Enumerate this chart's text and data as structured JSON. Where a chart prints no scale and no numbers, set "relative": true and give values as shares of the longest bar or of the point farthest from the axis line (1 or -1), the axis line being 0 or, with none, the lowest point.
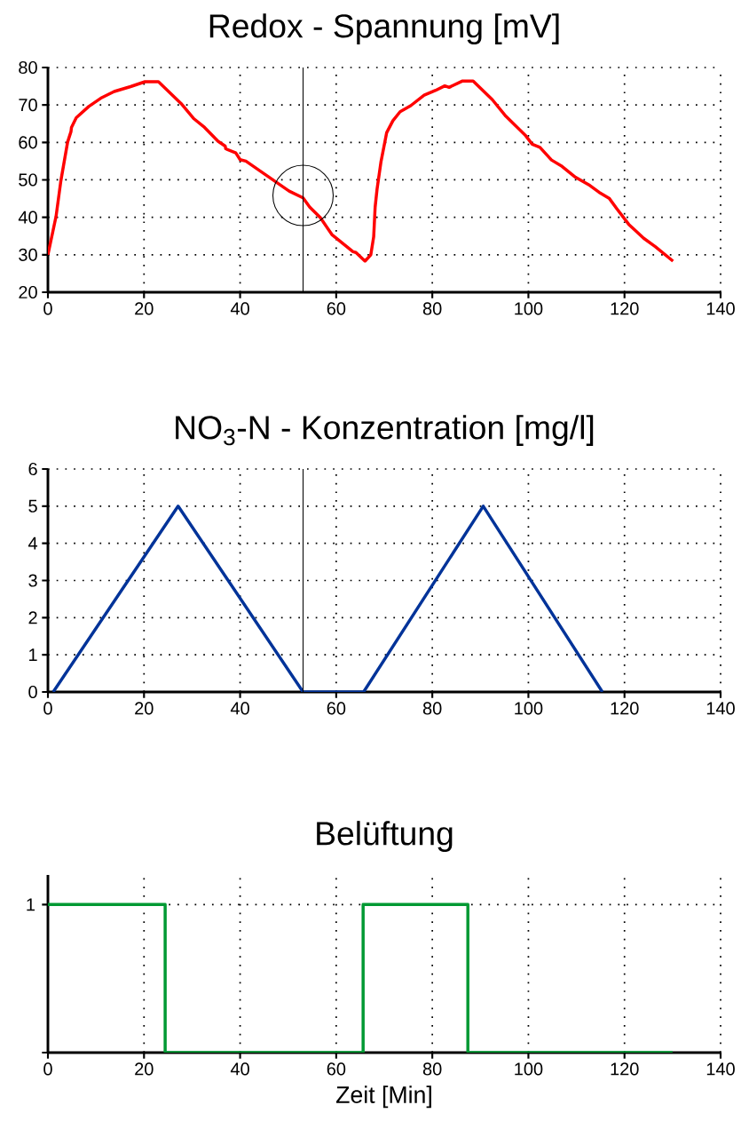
{
  "chart_data": [
    {
      "type": "line",
      "title": "Redox - Spannung [mV]",
      "x": [
        0,
        1.7,
        2.7,
        4.1,
        4.8,
        4.9,
        5.9,
        8.5,
        11.0,
        13.8,
        17.2,
        20.2,
        23.0,
        27.7,
        30.4,
        32.6,
        35.4,
        36.9,
        37.0,
        39.1,
        40,
        41.2,
        47.4,
        50.2,
        53.1,
        54.5,
        56.7,
        59.1,
        63.5,
        64.1,
        66.0,
        67.2,
        67.8,
        68.1,
        68.5,
        69.3,
        70.5,
        71.8,
        73.3,
        75.5,
        78.3,
        80.7,
        82.6,
        83.5,
        86.3,
        88.5,
        92.5,
        95.3,
        99.3,
        100.8,
        102.4,
        104.8,
        107.0,
        109.8,
        112.8,
        114.7,
        116.8,
        118.4,
        120.9,
        124.0,
        126.4,
        130.1
      ],
      "series": [
        {
          "color": "#ff0000",
          "values": [
            30,
            40.3,
            49.8,
            60.1,
            62.9,
            64,
            66.6,
            69.6,
            71.8,
            73.6,
            74.9,
            76.2,
            76.2,
            70.4,
            66.3,
            64,
            60.3,
            59.0,
            58.3,
            57.2,
            55.4,
            55,
            49.5,
            47,
            45.2,
            42.7,
            39.9,
            35.4,
            30.8,
            30.6,
            28.3,
            30,
            34.8,
            42.7,
            47.5,
            54.7,
            62.6,
            65.8,
            68.2,
            69.8,
            72.6,
            73.9,
            75.1,
            74.7,
            76.4,
            76.4,
            71.4,
            67.0,
            62.0,
            59.5,
            58.7,
            55.3,
            53.6,
            50.7,
            48.5,
            46.7,
            45.1,
            42.3,
            38.1,
            34.4,
            32.2,
            28.3
          ]
        }
      ],
      "xlim": [
        0,
        140
      ],
      "ylim": [
        20,
        80
      ],
      "xticks": [
        0,
        20,
        40,
        60,
        80,
        100,
        120,
        140
      ],
      "yticks": [
        20,
        30,
        40,
        50,
        60,
        70,
        80
      ],
      "grid": true,
      "marker": "none",
      "ref_lines": [
        {
          "axis": "x",
          "value": 53.1
        }
      ]
    },
    {
      "type": "line",
      "title": "NO$_{3}$-N - Konzentration [mg/l]",
      "x": [
        1.1,
        27.1,
        53.1,
        65.7,
        90.6,
        115.4
      ],
      "series": [
        {
          "color": "#003399",
          "values": [
            0,
            5,
            0,
            0,
            5,
            0
          ]
        }
      ],
      "xlim": [
        0,
        140
      ],
      "ylim": [
        0,
        6
      ],
      "xticks": [
        0,
        20,
        40,
        60,
        80,
        100,
        120,
        140
      ],
      "yticks": [
        0,
        1,
        2,
        3,
        4,
        5,
        6
      ],
      "grid": true,
      "marker": "none",
      "ref_lines": [
        {
          "axis": "x",
          "value": 53.1
        }
      ]
    },
    {
      "type": "step",
      "title": "Belüftung",
      "xlabel": "Zeit [Min]",
      "x": [
        0,
        24.4,
        65.6,
        87.4,
        130
      ],
      "series": [
        {
          "color": "#009933",
          "values": [
            1,
            0,
            1,
            0,
            0
          ]
        }
      ],
      "xlim": [
        0,
        140
      ],
      "xticks": [
        0,
        20,
        40,
        60,
        80,
        100,
        120,
        140
      ],
      "relative": true,
      "annotations": [
        "1"
      ],
      "grid": true,
      "marker": "none"
    }
  ]
}
